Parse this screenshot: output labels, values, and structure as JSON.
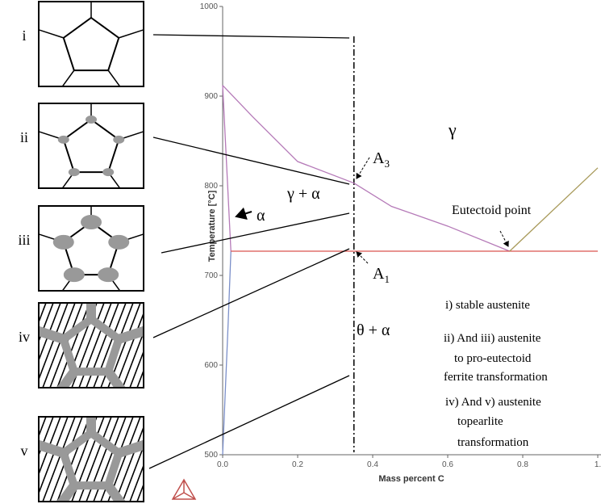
{
  "chart_data": {
    "type": "line",
    "xlabel": "Mass percent C",
    "ylabel": "Temperature [°C]",
    "xlim": [
      0,
      1
    ],
    "ylim": [
      500,
      1000
    ],
    "xticks": [
      {
        "value": 0,
        "label": "0.0"
      },
      0.2,
      0.4,
      0.6,
      0.8,
      {
        "value": 1,
        "label": "1."
      }
    ],
    "yticks": [
      500,
      600,
      700,
      800,
      900,
      1000
    ],
    "vline": 0.35,
    "series": [
      {
        "color": "#b57ab8",
        "x": [
          0,
          0.08,
          0.2,
          0.35,
          0.45,
          0.6,
          0.765
        ],
        "values": [
          912,
          877,
          827,
          803,
          777,
          755,
          727
        ]
      },
      {
        "color": "#b57ab8",
        "x": [
          0,
          0.022
        ],
        "values": [
          912,
          727
        ]
      },
      {
        "color": "#7b8fc9",
        "x": [
          0.022,
          0.015,
          0.005,
          0
        ],
        "values": [
          727,
          650,
          550,
          500
        ]
      },
      {
        "color": "#d9534f",
        "x": [
          0.022,
          1
        ],
        "values": [
          727,
          727
        ]
      },
      {
        "color": "#a89a5a",
        "x": [
          0.765,
          1
        ],
        "values": [
          727,
          820
        ]
      }
    ],
    "annotations": [
      {
        "text": "γ"
      },
      {
        "text": "A",
        "sub": "3"
      },
      {
        "text": "γ + α"
      },
      {
        "text": "α"
      },
      {
        "text": "Eutectoid point"
      },
      {
        "text": "A",
        "sub": "1"
      },
      {
        "text": "θ + α"
      },
      {
        "text": "i) stable austenite"
      },
      {
        "text": "ii) And iii) austenite"
      },
      {
        "text": "to pro-eutectoid"
      },
      {
        "text": "ferrite transformation"
      },
      {
        "text": "iv) And v) austenite"
      },
      {
        "text": "topearlite"
      },
      {
        "text": "transformation"
      }
    ]
  },
  "panel_labels": [
    "i",
    "ii",
    "iii",
    "iv",
    "v"
  ]
}
